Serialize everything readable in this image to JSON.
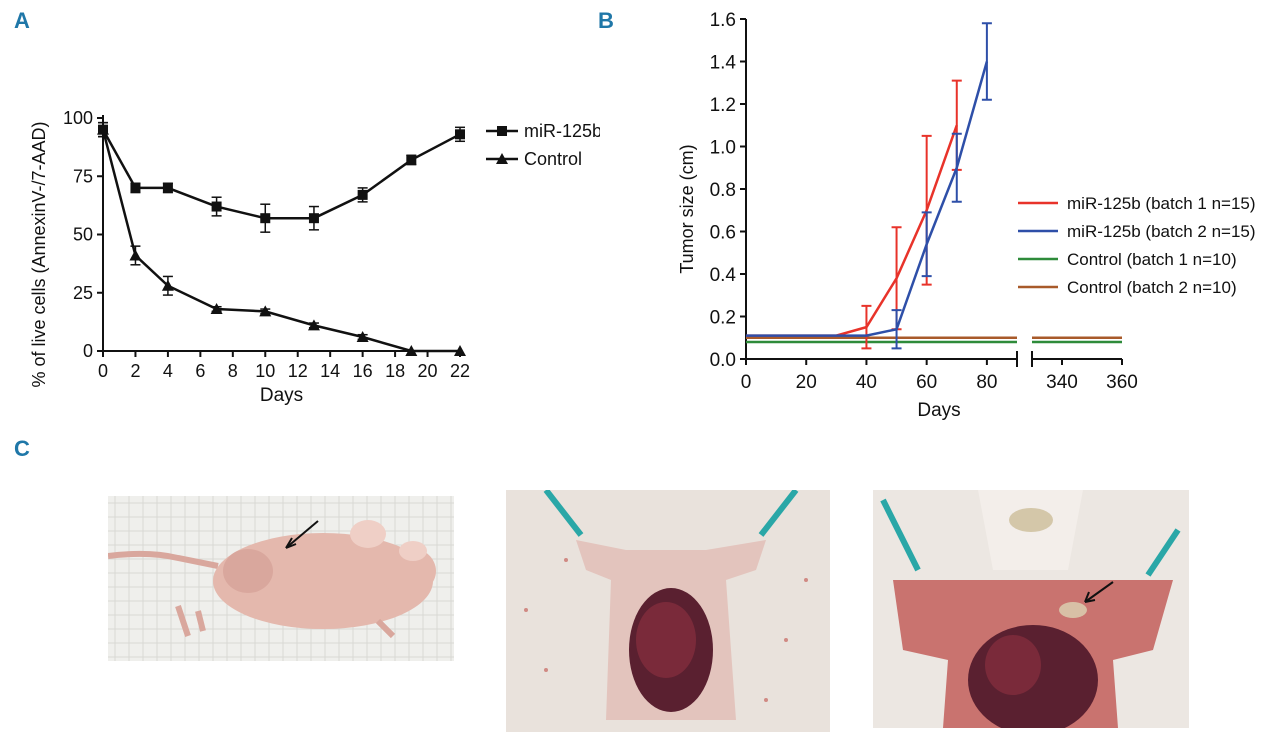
{
  "panels": {
    "a": "A",
    "b": "B",
    "c": "C"
  },
  "colors": {
    "letter": "#1f77a8",
    "mir_b1": "#e8332a",
    "mir_b2": "#2e4fa8",
    "ctrl_b1": "#2e8b3a",
    "ctrl_b2": "#a85a2a"
  },
  "chart_data": [
    {
      "type": "line",
      "panel": "A",
      "xlabel": "Days",
      "ylabel": "% of live cells (AnnexinV-/7-AAD)",
      "xlim": [
        0,
        22
      ],
      "ylim": [
        0,
        100
      ],
      "xticks": [
        0,
        2,
        4,
        6,
        8,
        10,
        12,
        14,
        16,
        18,
        20,
        22
      ],
      "yticks": [
        0,
        25,
        50,
        75,
        100
      ],
      "legend_position": "top-right",
      "series": [
        {
          "name": "miR-125b",
          "marker": "square",
          "x": [
            0,
            2,
            4,
            7,
            10,
            13,
            16,
            19,
            22
          ],
          "y": [
            95,
            70,
            70,
            62,
            57,
            57,
            67,
            82,
            93
          ],
          "err": [
            3,
            2,
            2,
            4,
            6,
            5,
            3,
            2,
            3
          ]
        },
        {
          "name": "Control",
          "marker": "triangle",
          "x": [
            0,
            2,
            4,
            7,
            10,
            13,
            16,
            19,
            22
          ],
          "y": [
            95,
            41,
            28,
            18,
            17,
            11,
            6,
            0,
            0
          ],
          "err": [
            3,
            4,
            4,
            1,
            1,
            1,
            1,
            0,
            0
          ]
        }
      ]
    },
    {
      "type": "line",
      "panel": "B",
      "xlabel": "Days",
      "ylabel": "Tumor size (cm)",
      "ylim": [
        0,
        1.6
      ],
      "yticks": [
        "0.0",
        "0.2",
        "0.4",
        "0.6",
        "0.8",
        "1.0",
        "1.2",
        "1.4",
        "1.6"
      ],
      "xticks_left": [
        0,
        20,
        40,
        60,
        80
      ],
      "xticks_right": [
        340,
        360
      ],
      "xlim_left": [
        0,
        90
      ],
      "xlim_right": [
        330,
        360
      ],
      "axis_break": "between 90 and 330",
      "legend_position": "right",
      "series": [
        {
          "name": "miR-125b (batch 1 n=15)",
          "color": "#e8332a",
          "x": [
            0,
            30,
            40,
            50,
            60,
            70
          ],
          "y": [
            0.11,
            0.11,
            0.15,
            0.38,
            0.7,
            1.1
          ],
          "err": [
            0,
            0,
            0.1,
            0.24,
            0.35,
            0.21
          ]
        },
        {
          "name": "miR-125b (batch 2 n=15)",
          "color": "#2e4fa8",
          "x": [
            0,
            40,
            50,
            60,
            70,
            80
          ],
          "y": [
            0.11,
            0.11,
            0.14,
            0.54,
            0.9,
            1.4
          ],
          "err": [
            0,
            0,
            0.09,
            0.15,
            0.16,
            0.18
          ]
        },
        {
          "name": "Control (batch 1 n=10)",
          "color": "#2e8b3a",
          "x": [
            0,
            360
          ],
          "y": [
            0.08,
            0.08
          ],
          "err": [
            0,
            0
          ]
        },
        {
          "name": "Control (batch 2 n=10)",
          "color": "#a85a2a",
          "x": [
            0,
            360
          ],
          "y": [
            0.1,
            0.1
          ],
          "err": [
            0,
            0
          ]
        }
      ]
    }
  ]
}
